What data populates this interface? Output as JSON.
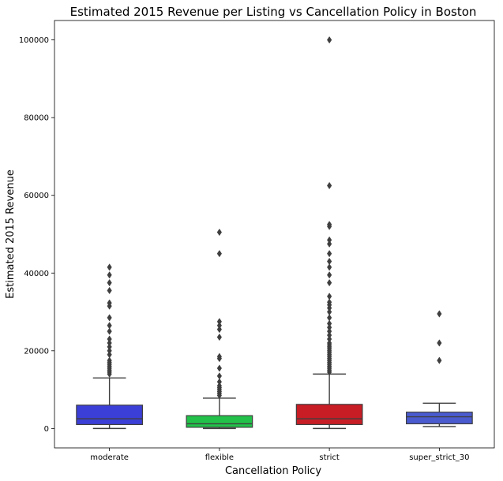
{
  "chart_data": {
    "type": "box",
    "title": "Estimated 2015 Revenue per Listing vs Cancellation Policy in Boston",
    "xlabel": "Cancellation Policy",
    "ylabel": "Estimated 2015 Revenue",
    "ylim": [
      -5000,
      105000
    ],
    "yticks": [
      0,
      20000,
      40000,
      60000,
      80000,
      100000
    ],
    "grid": false,
    "categories": [
      "moderate",
      "flexible",
      "strict",
      "super_strict_30"
    ],
    "colors": [
      "#3b3fd8",
      "#22c24a",
      "#c81d25",
      "#4a5bd0"
    ],
    "boxes": [
      {
        "name": "moderate",
        "min": 0,
        "q1": 1000,
        "median": 2500,
        "q3": 6000,
        "max": 13000,
        "outliers": [
          14000,
          14500,
          15000,
          15500,
          16000,
          16500,
          17000,
          17500,
          19000,
          20000,
          21000,
          22000,
          23000,
          25000,
          26500,
          28500,
          31500,
          32300,
          35500,
          37500,
          39500,
          41500
        ]
      },
      {
        "name": "flexible",
        "min": 0,
        "q1": 300,
        "median": 1200,
        "q3": 3300,
        "max": 7800,
        "outliers": [
          8500,
          9000,
          9500,
          10000,
          10500,
          11000,
          12000,
          13500,
          15500,
          18000,
          18500,
          23500,
          25500,
          26500,
          27500,
          45000,
          50500
        ]
      },
      {
        "name": "strict",
        "min": 0,
        "q1": 1000,
        "median": 2500,
        "q3": 6200,
        "max": 14000,
        "outliers": [
          14500,
          15000,
          15500,
          16000,
          16500,
          17000,
          17500,
          18000,
          18500,
          19000,
          19500,
          20000,
          20500,
          21000,
          21500,
          22000,
          23000,
          24000,
          25000,
          26000,
          27000,
          28500,
          30000,
          31000,
          31800,
          32500,
          34000,
          37500,
          39500,
          41500,
          43000,
          45000,
          47500,
          48500,
          52000,
          52500,
          62500,
          100000
        ]
      },
      {
        "name": "super_strict_30",
        "min": 500,
        "q1": 1200,
        "median": 3000,
        "q3": 4200,
        "max": 6500,
        "outliers": [
          17500,
          22000,
          29500
        ]
      }
    ]
  }
}
